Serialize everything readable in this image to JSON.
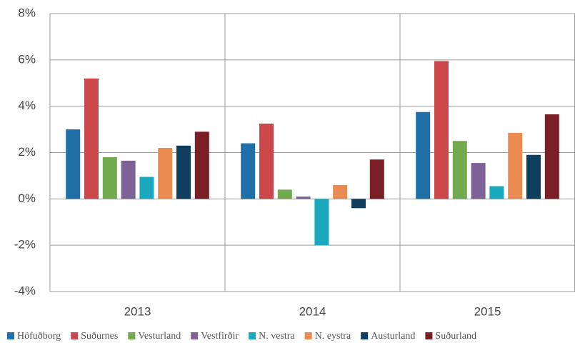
{
  "chart_data": {
    "type": "bar",
    "categories": [
      "2013",
      "2014",
      "2015"
    ],
    "series": [
      {
        "name": "Höfuðborg",
        "color": "#1f6fa8",
        "values": [
          3.0,
          2.4,
          3.75
        ]
      },
      {
        "name": "Suðurnes",
        "color": "#cc4749",
        "values": [
          5.2,
          3.25,
          5.95
        ]
      },
      {
        "name": "Vesturland",
        "color": "#72aa4e",
        "values": [
          1.8,
          0.4,
          2.5
        ]
      },
      {
        "name": "Vestfirðir",
        "color": "#7c6296",
        "values": [
          1.65,
          0.1,
          1.55
        ]
      },
      {
        "name": "N. vestra",
        "color": "#1ba8be",
        "values": [
          0.95,
          -2.0,
          0.55
        ]
      },
      {
        "name": "N. eystra",
        "color": "#ea8b52",
        "values": [
          2.2,
          0.6,
          2.85
        ]
      },
      {
        "name": "Austurland",
        "color": "#0f3e5e",
        "values": [
          2.3,
          -0.4,
          1.9
        ]
      },
      {
        "name": "Suðurland",
        "color": "#7a1f26",
        "values": [
          2.9,
          1.7,
          3.65
        ]
      }
    ],
    "ylim": [
      -4,
      8
    ],
    "yticks": [
      {
        "value": -4,
        "label": "-4%"
      },
      {
        "value": -2,
        "label": "-2%"
      },
      {
        "value": 0,
        "label": "0%"
      },
      {
        "value": 2,
        "label": "2%"
      },
      {
        "value": 4,
        "label": "4%"
      },
      {
        "value": 6,
        "label": "6%"
      },
      {
        "value": 8,
        "label": "8%"
      }
    ],
    "grid": true
  }
}
